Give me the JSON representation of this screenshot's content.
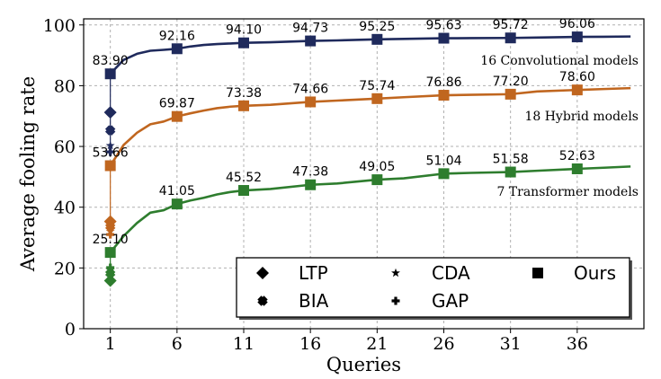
{
  "chart_data": {
    "type": "line",
    "xlabel": "Queries",
    "ylabel": "Average fooling rate",
    "xlim": [
      -1,
      41
    ],
    "ylim": [
      0,
      102
    ],
    "xticks": [
      1,
      6,
      11,
      16,
      21,
      26,
      31,
      36
    ],
    "yticks": [
      0,
      20,
      40,
      60,
      80,
      100
    ],
    "grid": true,
    "legend_placement": "lower-right",
    "legend": [
      "LTP",
      "CDA",
      "Ours",
      "BIA",
      "GAP"
    ],
    "series": [
      {
        "name": "16 Convolutional models",
        "color": "#1f2a5c",
        "curve": [
          [
            1,
            83.9
          ],
          [
            2,
            88.5
          ],
          [
            3,
            90.5
          ],
          [
            4,
            91.5
          ],
          [
            5,
            91.8
          ],
          [
            6,
            92.16
          ],
          [
            7,
            92.9
          ],
          [
            8,
            93.4
          ],
          [
            9,
            93.7
          ],
          [
            10,
            93.9
          ],
          [
            11,
            94.1
          ],
          [
            13,
            94.3
          ],
          [
            16,
            94.73
          ],
          [
            18,
            94.9
          ],
          [
            21,
            95.25
          ],
          [
            23,
            95.4
          ],
          [
            26,
            95.63
          ],
          [
            28,
            95.65
          ],
          [
            31,
            95.72
          ],
          [
            33,
            95.85
          ],
          [
            36,
            96.06
          ],
          [
            38,
            96.1
          ],
          [
            40,
            96.2
          ]
        ],
        "queries": [
          1,
          6,
          11,
          16,
          21,
          26,
          31,
          36
        ],
        "values": [
          83.9,
          92.16,
          94.1,
          94.73,
          95.25,
          95.63,
          95.72,
          96.06
        ],
        "labels": [
          "83.90",
          "92.16",
          "94.10",
          "94.73",
          "95.25",
          "95.63",
          "95.72",
          "96.06"
        ],
        "baselines_at_1": {
          "LTP": 71.2,
          "BIA": 65.3,
          "CDA": 60.3,
          "GAP": 58.2
        },
        "label_text": "16 Convolutional models"
      },
      {
        "name": "18 Hybrid models",
        "color": "#c0661f",
        "curve": [
          [
            1,
            53.66
          ],
          [
            2,
            60.5
          ],
          [
            3,
            64.5
          ],
          [
            4,
            67.3
          ],
          [
            5,
            68.2
          ],
          [
            6,
            69.87
          ],
          [
            7,
            70.9
          ],
          [
            8,
            71.8
          ],
          [
            9,
            72.6
          ],
          [
            10,
            73.1
          ],
          [
            11,
            73.38
          ],
          [
            13,
            73.7
          ],
          [
            16,
            74.66
          ],
          [
            18,
            75.1
          ],
          [
            21,
            75.74
          ],
          [
            23,
            76.2
          ],
          [
            26,
            76.86
          ],
          [
            28,
            77.0
          ],
          [
            31,
            77.2
          ],
          [
            33,
            78.1
          ],
          [
            36,
            78.6
          ],
          [
            38,
            78.9
          ],
          [
            40,
            79.2
          ]
        ],
        "queries": [
          1,
          6,
          11,
          16,
          21,
          26,
          31,
          36
        ],
        "values": [
          53.66,
          69.87,
          73.38,
          74.66,
          75.74,
          76.86,
          77.2,
          78.6
        ],
        "labels": [
          "53.66",
          "69.87",
          "73.38",
          "74.66",
          "75.74",
          "76.86",
          "77.20",
          "78.60"
        ],
        "baselines_at_1": {
          "LTP": 35.3,
          "BIA": 33.6,
          "CDA": 32.0,
          "GAP": 31.0
        },
        "label_text": "18 Hybrid models"
      },
      {
        "name": "7 Transformer models",
        "color": "#2e7d2e",
        "curve": [
          [
            1,
            25.1
          ],
          [
            2,
            30.5
          ],
          [
            3,
            34.8
          ],
          [
            4,
            38.2
          ],
          [
            5,
            39.0
          ],
          [
            6,
            41.05
          ],
          [
            7,
            42.2
          ],
          [
            8,
            43.1
          ],
          [
            9,
            44.2
          ],
          [
            10,
            45.0
          ],
          [
            11,
            45.52
          ],
          [
            13,
            46.0
          ],
          [
            16,
            47.38
          ],
          [
            18,
            47.8
          ],
          [
            21,
            49.05
          ],
          [
            23,
            49.5
          ],
          [
            26,
            51.04
          ],
          [
            28,
            51.3
          ],
          [
            31,
            51.58
          ],
          [
            33,
            52.0
          ],
          [
            36,
            52.63
          ],
          [
            38,
            53.0
          ],
          [
            40,
            53.4
          ]
        ],
        "queries": [
          1,
          6,
          11,
          16,
          21,
          26,
          31,
          36
        ],
        "values": [
          25.1,
          41.05,
          45.52,
          47.38,
          49.05,
          51.04,
          51.58,
          52.63
        ],
        "labels": [
          "25.10",
          "41.05",
          "45.52",
          "47.38",
          "49.05",
          "51.04",
          "51.58",
          "52.63"
        ],
        "baselines_at_1": {
          "LTP": 15.8,
          "BIA": 18.2,
          "CDA": 19.3,
          "GAP": 20.1
        },
        "label_text": "7 Transformer models"
      }
    ]
  }
}
